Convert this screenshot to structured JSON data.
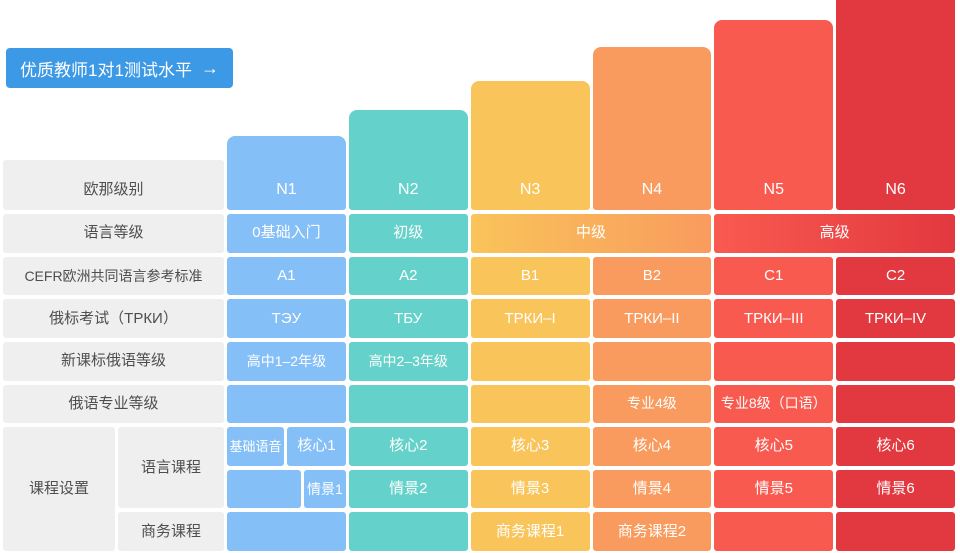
{
  "button": {
    "label": "优质教师1对1测试水平",
    "arrow": "→"
  },
  "colors": {
    "n1": "#85BFF7",
    "n2": "#64D2CA",
    "n3": "#F9C45A",
    "n4": "#F99B5E",
    "n5": "#F95A50",
    "n6": "#E2383F",
    "button": "#3C99E6",
    "label_bg": "#EFEFEF",
    "label_text": "#4E4E4E"
  },
  "table": {
    "row_labels": [
      "欧那级别",
      "语言等级",
      "CEFR欧洲共同语言参考标准",
      "俄标考试（ТРКИ）",
      "新课标俄语等级",
      "俄语专业等级"
    ],
    "course_group_label": "课程设置",
    "course_rows": {
      "language": "语言课程",
      "business": "商务课程"
    },
    "merged_lang": {
      "mid": "中级",
      "high": "高级"
    },
    "columns": [
      {
        "level": "N1",
        "lang": "0基础入门",
        "cefr": "A1",
        "trki": "ТЭУ",
        "school": "高中1–2年级",
        "major": "",
        "core_prefix": "基础语音",
        "core": "核心1",
        "scene": "情景1",
        "business": ""
      },
      {
        "level": "N2",
        "lang": "初级",
        "cefr": "A2",
        "trki": "ТБУ",
        "school": "高中2–3年级",
        "major": "",
        "core": "核心2",
        "scene": "情景2",
        "business": ""
      },
      {
        "level": "N3",
        "lang": "",
        "cefr": "B1",
        "trki": "ТРКИ–I",
        "school": "",
        "major": "",
        "core": "核心3",
        "scene": "情景3",
        "business": "商务课程1"
      },
      {
        "level": "N4",
        "lang": "",
        "cefr": "B2",
        "trki": "ТРКИ–II",
        "school": "",
        "major": "专业4级",
        "core": "核心4",
        "scene": "情景4",
        "business": "商务课程2"
      },
      {
        "level": "N5",
        "lang": "",
        "cefr": "C1",
        "trki": "ТРКИ–III",
        "school": "",
        "major": "专业8级（口语）",
        "core": "核心5",
        "scene": "情景5",
        "business": ""
      },
      {
        "level": "N6",
        "lang": "",
        "cefr": "C2",
        "trki": "ТРКИ–IV",
        "school": "",
        "major": "",
        "core": "核心6",
        "scene": "情景6",
        "business": ""
      }
    ]
  }
}
